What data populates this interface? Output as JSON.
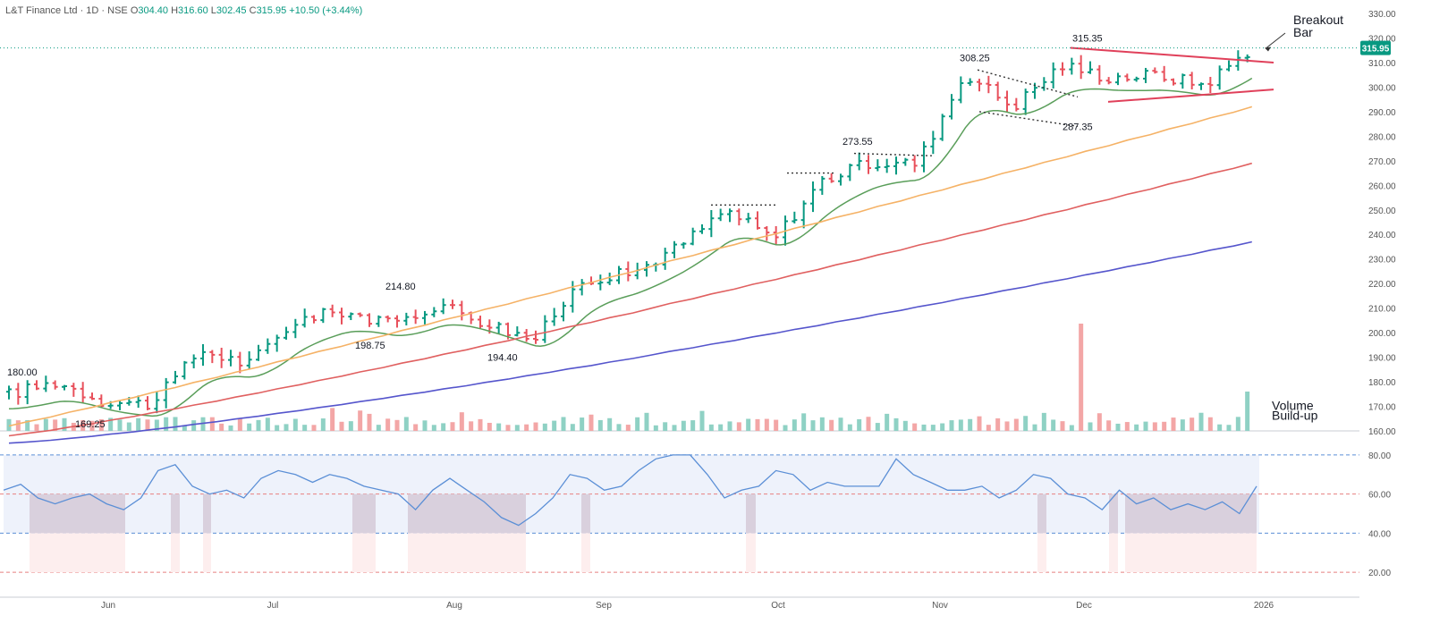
{
  "header": {
    "symbol": "L&T Finance Ltd · 1D · NSE",
    "open_label": "O",
    "open": "304.40",
    "high_label": "H",
    "high": "316.60",
    "low_label": "L",
    "low": "302.45",
    "close_label": "C",
    "close": "315.95",
    "change": "+10.50 (+3.44%)"
  },
  "colors": {
    "up": "#089981",
    "down": "#e8505b",
    "ma20": "#5a9e5a",
    "ma50": "#f5b266",
    "ma100": "#e06060",
    "ma200": "#5555cc",
    "rsi": "#5b8fd6",
    "trendline": "#e0405a"
  },
  "chart_data": [
    {
      "type": "line",
      "subtype": "ohlc-bars",
      "y_axis": {
        "min": 160,
        "max": 330,
        "ticks": [
          "160.00",
          "170.00",
          "180.00",
          "190.00",
          "200.00",
          "210.00",
          "220.00",
          "230.00",
          "240.00",
          "250.00",
          "260.00",
          "270.00",
          "280.00",
          "290.00",
          "300.00",
          "310.00",
          "320.00",
          "330.00"
        ],
        "position": "right"
      },
      "x_axis": {
        "ticks": [
          "Jun",
          "Jul",
          "Aug",
          "Sep",
          "Oct",
          "Nov",
          "Dec",
          "2026"
        ]
      },
      "last_price_label": "315.95",
      "price_anchors": [
        {
          "x": "start",
          "close": 175
        },
        {
          "x": "early-May",
          "close": 180
        },
        {
          "x": "mid-May",
          "close": 172
        },
        {
          "x": "late-May",
          "close": 171
        },
        {
          "x": "early-Jun",
          "close": 193
        },
        {
          "x": "mid-Jun",
          "close": 187
        },
        {
          "x": "late-Jun",
          "close": 205
        },
        {
          "x": "early-Jul",
          "close": 209
        },
        {
          "x": "mid-Jul",
          "close": 203
        },
        {
          "x": "late-Jul",
          "close": 212
        },
        {
          "x": "early-Aug",
          "close": 204
        },
        {
          "x": "mid-Aug",
          "close": 197
        },
        {
          "x": "late-Aug",
          "close": 222
        },
        {
          "x": "early-Sep",
          "close": 224
        },
        {
          "x": "mid-Sep",
          "close": 235
        },
        {
          "x": "late-Sep",
          "close": 250
        },
        {
          "x": "end-Sep",
          "close": 238
        },
        {
          "x": "early-Oct",
          "close": 262
        },
        {
          "x": "mid-Oct",
          "close": 269
        },
        {
          "x": "late-Oct",
          "close": 269
        },
        {
          "x": "early-Nov",
          "close": 306
        },
        {
          "x": "mid-Nov",
          "close": 292
        },
        {
          "x": "late-Nov",
          "close": 309
        },
        {
          "x": "early-Dec",
          "close": 304
        },
        {
          "x": "mid-Dec",
          "close": 305
        },
        {
          "x": "late-Dec",
          "close": 301
        },
        {
          "x": "end",
          "close": 315.95
        }
      ],
      "moving_averages": [
        {
          "color": "ma20",
          "from": 165,
          "to": 305
        },
        {
          "color": "ma50",
          "from": 160,
          "to": 292
        },
        {
          "color": "ma100",
          "from": 160,
          "to": 269
        },
        {
          "color": "ma200",
          "from": 160,
          "to": 237
        }
      ],
      "annotations": [
        {
          "text": "180.00",
          "price": 184
        },
        {
          "text": "169.25",
          "price": 163
        },
        {
          "text": "198.75",
          "price": 195
        },
        {
          "text": "214.80",
          "price": 219
        },
        {
          "text": "194.40",
          "price": 190
        },
        {
          "text": "273.55",
          "price": 278
        },
        {
          "text": "308.25",
          "price": 312
        },
        {
          "text": "287.35",
          "price": 284
        },
        {
          "text": "315.35",
          "price": 320
        },
        {
          "text": "Breakout",
          "price": 327
        },
        {
          "text": "Bar",
          "price": 322
        },
        {
          "text": "Volume",
          "price": 170
        },
        {
          "text": "Build-up",
          "price": 166
        }
      ]
    },
    {
      "type": "line",
      "subtype": "rsi",
      "y_axis": {
        "min": 10,
        "max": 90,
        "ticks": [
          "20.00",
          "40.00",
          "60.00",
          "80.00"
        ],
        "position": "right"
      },
      "levels": [
        80,
        60,
        40,
        20
      ],
      "anchors": [
        62,
        65,
        58,
        55,
        58,
        60,
        55,
        52,
        58,
        72,
        75,
        64,
        60,
        62,
        58,
        68,
        72,
        70,
        66,
        70,
        68,
        64,
        62,
        60,
        52,
        62,
        68,
        62,
        56,
        48,
        44,
        50,
        58,
        70,
        68,
        62,
        64,
        72,
        78,
        80,
        80,
        70,
        58,
        62,
        64,
        72,
        70,
        62,
        66,
        64,
        64,
        64,
        78,
        70,
        66,
        62,
        62,
        64,
        58,
        62,
        70,
        68,
        60,
        58,
        52,
        62,
        55,
        58,
        52,
        55,
        52,
        56,
        50,
        64
      ]
    }
  ]
}
